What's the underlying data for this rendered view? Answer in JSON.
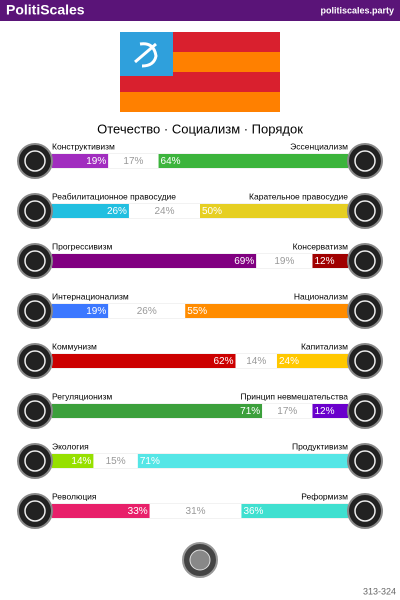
{
  "header": {
    "title": "PolitiScales",
    "site": "politiscales.party"
  },
  "motto": "Отечество · Социализм · Порядок",
  "axes": [
    {
      "left": "Конструктивизм",
      "right": "Эссенциализм",
      "segments": [
        {
          "value": 19,
          "label": "19%",
          "color": "#a12dbf"
        },
        {
          "value": 17,
          "label": "17%",
          "color": "#ffffff"
        },
        {
          "value": 64,
          "label": "64%",
          "color": "#3cb43c"
        }
      ]
    },
    {
      "left": "Реабилитационное правосудие",
      "right": "Карательное правосудие",
      "segments": [
        {
          "value": 26,
          "label": "26%",
          "color": "#22bfe0"
        },
        {
          "value": 24,
          "label": "24%",
          "color": "#ffffff"
        },
        {
          "value": 50,
          "label": "50%",
          "color": "#e6cf22"
        }
      ]
    },
    {
      "left": "Прогрессивизм",
      "right": "Консерватизм",
      "segments": [
        {
          "value": 69,
          "label": "69%",
          "color": "#800080"
        },
        {
          "value": 19,
          "label": "19%",
          "color": "#ffffff"
        },
        {
          "value": 12,
          "label": "12%",
          "color": "#a00000"
        }
      ]
    },
    {
      "left": "Интернационализм",
      "right": "Национализм",
      "segments": [
        {
          "value": 19,
          "label": "19%",
          "color": "#3c78ff"
        },
        {
          "value": 26,
          "label": "26%",
          "color": "#ffffff"
        },
        {
          "value": 55,
          "label": "55%",
          "color": "#ff8c00"
        }
      ]
    },
    {
      "left": "Коммунизм",
      "right": "Капитализм",
      "segments": [
        {
          "value": 62,
          "label": "62%",
          "color": "#cc0000"
        },
        {
          "value": 14,
          "label": "14%",
          "color": "#ffffff"
        },
        {
          "value": 24,
          "label": "24%",
          "color": "#ffc800"
        }
      ]
    },
    {
      "left": "Регуляционизм",
      "right": "Принцип невмешательства",
      "segments": [
        {
          "value": 71,
          "label": "71%",
          "color": "#3ca03c"
        },
        {
          "value": 17,
          "label": "17%",
          "color": "#ffffff"
        },
        {
          "value": 12,
          "label": "12%",
          "color": "#6a00cc"
        }
      ]
    },
    {
      "left": "Экология",
      "right": "Продуктивизм",
      "segments": [
        {
          "value": 14,
          "label": "14%",
          "color": "#96e000"
        },
        {
          "value": 15,
          "label": "15%",
          "color": "#ffffff"
        },
        {
          "value": 71,
          "label": "71%",
          "color": "#55e6e6"
        }
      ]
    },
    {
      "left": "Революция",
      "right": "Реформизм",
      "segments": [
        {
          "value": 33,
          "label": "33%",
          "color": "#e8206a"
        },
        {
          "value": 31,
          "label": "31%",
          "color": "#ffffff"
        },
        {
          "value": 36,
          "label": "36%",
          "color": "#40e0d0"
        }
      ]
    }
  ],
  "footer": "313-324"
}
